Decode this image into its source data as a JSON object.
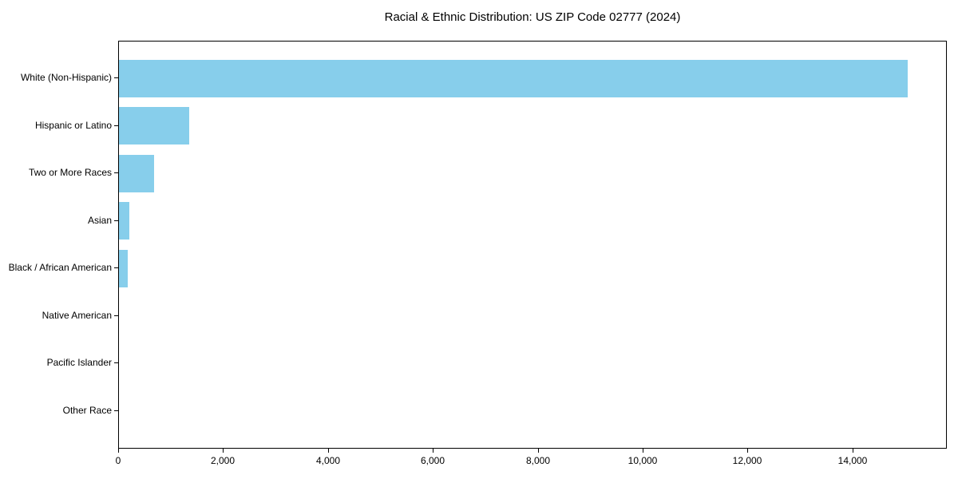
{
  "title": "Racial & Ethnic Distribution: US ZIP Code 02777 (2024)",
  "chart_data": {
    "type": "bar",
    "orientation": "horizontal",
    "title": "Racial & Ethnic Distribution: US ZIP Code 02777 (2024)",
    "categories": [
      "White (Non-Hispanic)",
      "Hispanic or Latino",
      "Two or More Races",
      "Asian",
      "Black / African American",
      "Native American",
      "Pacific Islander",
      "Other Race"
    ],
    "values": [
      15040,
      1335,
      675,
      200,
      165,
      0,
      0,
      0
    ],
    "xlabel": "",
    "ylabel": "",
    "xlim": [
      0,
      15800
    ],
    "xticks": [
      0,
      2000,
      4000,
      6000,
      8000,
      10000,
      12000,
      14000
    ],
    "xtick_labels": [
      "0",
      "2,000",
      "4,000",
      "6,000",
      "8,000",
      "10,000",
      "12,000",
      "14,000"
    ],
    "bar_color": "#87CEEB",
    "frame_color": "#000000",
    "background_color": "#ffffff",
    "grid": false,
    "legend": null
  }
}
